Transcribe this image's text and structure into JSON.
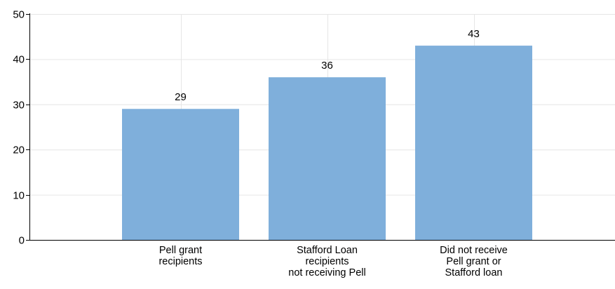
{
  "chart_data": {
    "type": "bar",
    "categories": [
      [
        "Pell grant",
        "recipients"
      ],
      [
        "Stafford Loan",
        "recipients",
        "not receiving Pell"
      ],
      [
        "Did not receive",
        "Pell grant or",
        "Stafford loan"
      ]
    ],
    "values": [
      29,
      36,
      43
    ],
    "data_labels": [
      "29",
      "36",
      "43"
    ],
    "title": "",
    "xlabel": "",
    "ylabel": "",
    "ylim": [
      0,
      50
    ],
    "yticks": [
      0,
      10,
      20,
      30,
      40,
      50
    ],
    "ytick_labels": [
      "0",
      "10",
      "20",
      "30",
      "40",
      "50"
    ],
    "grid": true,
    "legend": "none",
    "colors": {
      "bar": "#7fafdb",
      "grid": "#e6e6e6",
      "axis": "#000000"
    }
  }
}
